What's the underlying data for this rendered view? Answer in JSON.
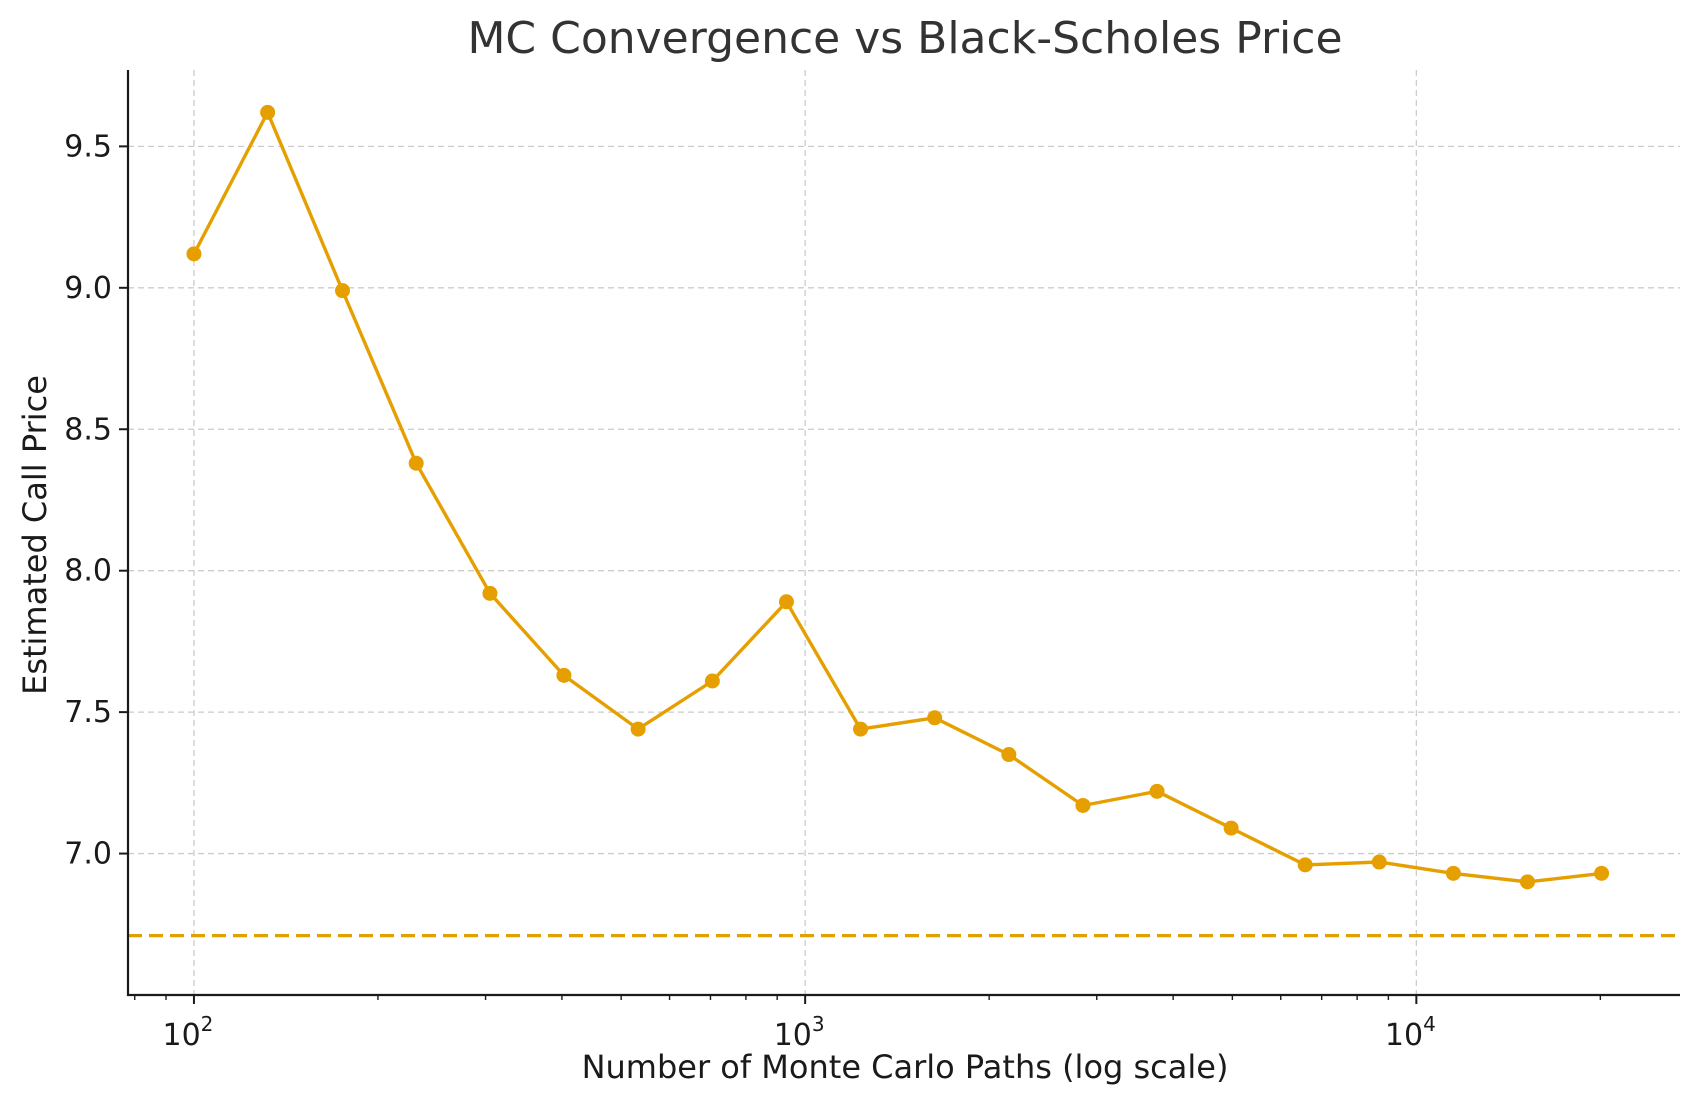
{
  "chart_data": {
    "type": "line",
    "title": "MC Convergence vs Black-Scholes Price",
    "xlabel": "Number of Monte Carlo Paths (log scale)",
    "ylabel": "Estimated Call Price",
    "xscale": "log",
    "xlim": [
      78,
      27000
    ],
    "ylim": [
      6.5,
      9.77
    ],
    "grid": true,
    "x_ticks": [
      {
        "value": 100,
        "base": "10",
        "exp": "2"
      },
      {
        "value": 1000,
        "base": "10",
        "exp": "3"
      },
      {
        "value": 10000,
        "base": "10",
        "exp": "4"
      }
    ],
    "y_ticks": [
      {
        "value": 7.0,
        "label": "7.0"
      },
      {
        "value": 7.5,
        "label": "7.5"
      },
      {
        "value": 8.0,
        "label": "8.0"
      },
      {
        "value": 8.5,
        "label": "8.5"
      },
      {
        "value": 9.0,
        "label": "9.0"
      },
      {
        "value": 9.5,
        "label": "9.5"
      }
    ],
    "series": [
      {
        "color": "#e69f00",
        "marker": "circle",
        "x": [
          100,
          132,
          175,
          231,
          305,
          403,
          533,
          705,
          932,
          1232,
          1629,
          2154,
          2848,
          3765,
          4977,
          6579,
          8697,
          11498,
          15199,
          20092
        ],
        "y": [
          9.12,
          9.62,
          8.99,
          8.38,
          7.92,
          7.63,
          7.44,
          7.61,
          7.89,
          7.44,
          7.48,
          7.35,
          7.17,
          7.22,
          7.09,
          6.96,
          6.97,
          6.93,
          6.9,
          6.93
        ]
      }
    ],
    "reference_line": {
      "y": 6.71,
      "color": "#e0a000",
      "style": "dashed"
    }
  }
}
